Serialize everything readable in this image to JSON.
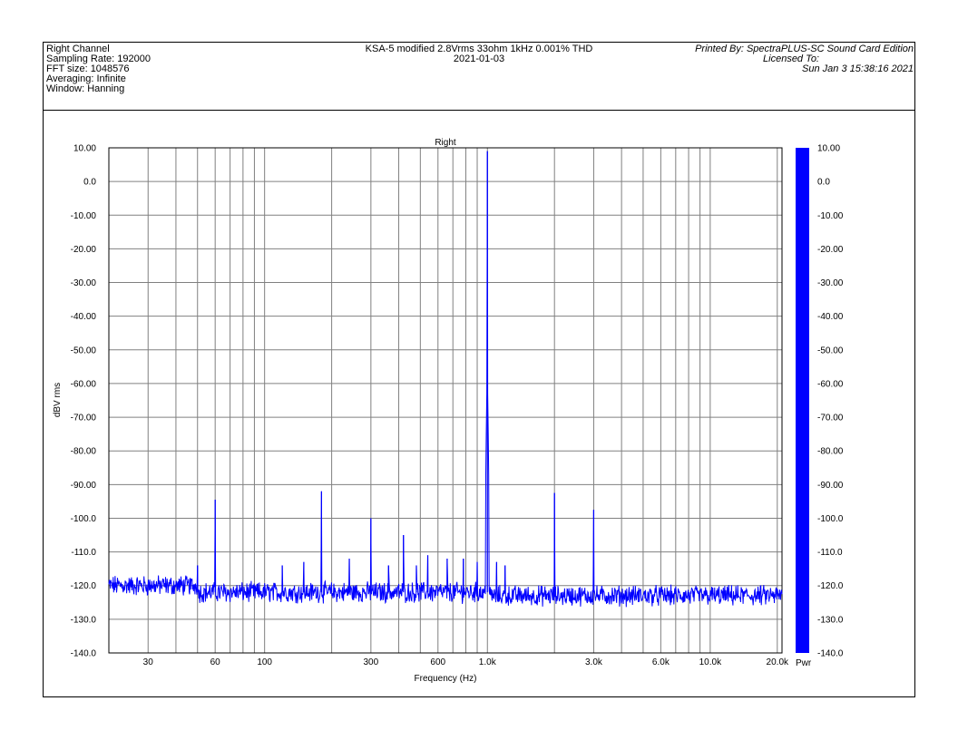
{
  "header": {
    "left": [
      "Right Channel",
      "Sampling Rate: 192000",
      "FFT size: 1048576",
      "Averaging: Infinite",
      "Window: Hanning"
    ],
    "center": [
      "KSA-5 modified 2.8Vrms 33ohm 1kHz 0.001% THD",
      "2021-01-03"
    ],
    "right": [
      "Printed By: SpectraPLUS-SC Sound Card Edition",
      "Licensed To:",
      "Sun Jan  3 15:38:16 2021"
    ]
  },
  "colors": {
    "trace": "#0000ff",
    "grid": "#808080",
    "axis": "#000000"
  },
  "chart_data": {
    "type": "line",
    "title": "Right",
    "xlabel": "Frequency (Hz)",
    "ylabel": "dBV rms",
    "x_scale": "log",
    "xlim": [
      20,
      21000
    ],
    "ylim": [
      -140,
      10
    ],
    "x_ticks": [
      {
        "v": 30,
        "label": "30"
      },
      {
        "v": 60,
        "label": "60"
      },
      {
        "v": 100,
        "label": "100"
      },
      {
        "v": 300,
        "label": "300"
      },
      {
        "v": 600,
        "label": "600"
      },
      {
        "v": 1000,
        "label": "1.0k"
      },
      {
        "v": 3000,
        "label": "3.0k"
      },
      {
        "v": 6000,
        "label": "6.0k"
      },
      {
        "v": 10000,
        "label": "10.0k"
      },
      {
        "v": 20000,
        "label": "20.0k"
      }
    ],
    "y_ticks": [
      {
        "v": 10,
        "label": "10.00"
      },
      {
        "v": 0,
        "label": "0.0"
      },
      {
        "v": -10,
        "label": "-10.00"
      },
      {
        "v": -20,
        "label": "-20.00"
      },
      {
        "v": -30,
        "label": "-30.00"
      },
      {
        "v": -40,
        "label": "-40.00"
      },
      {
        "v": -50,
        "label": "-50.00"
      },
      {
        "v": -60,
        "label": "-60.00"
      },
      {
        "v": -70,
        "label": "-70.00"
      },
      {
        "v": -80,
        "label": "-80.00"
      },
      {
        "v": -90,
        "label": "-90.00"
      },
      {
        "v": -100,
        "label": "-100.0"
      },
      {
        "v": -110,
        "label": "-110.0"
      },
      {
        "v": -120,
        "label": "-120.0"
      },
      {
        "v": -130,
        "label": "-130.0"
      },
      {
        "v": -140,
        "label": "-140.0"
      }
    ],
    "grid": true,
    "noise_floor_db": -122,
    "peaks": [
      {
        "x": 50,
        "y": -114
      },
      {
        "x": 60,
        "y": -94.5
      },
      {
        "x": 120,
        "y": -114
      },
      {
        "x": 150,
        "y": -113
      },
      {
        "x": 180,
        "y": -92
      },
      {
        "x": 240,
        "y": -112
      },
      {
        "x": 300,
        "y": -100
      },
      {
        "x": 360,
        "y": -114
      },
      {
        "x": 420,
        "y": -105
      },
      {
        "x": 480,
        "y": -114
      },
      {
        "x": 540,
        "y": -111
      },
      {
        "x": 660,
        "y": -112
      },
      {
        "x": 780,
        "y": -112
      },
      {
        "x": 900,
        "y": -113
      },
      {
        "x": 1000,
        "y": 9
      },
      {
        "x": 1100,
        "y": -113
      },
      {
        "x": 1200,
        "y": -114
      },
      {
        "x": 2000,
        "y": -92.5
      },
      {
        "x": 3000,
        "y": -97.5
      }
    ],
    "legend": {
      "label": "Pwr",
      "position": "right",
      "scale_max": 10,
      "scale_min": -140,
      "tick_labels": [
        "10.00",
        "0.0",
        "-10.00",
        "-20.00",
        "-30.00",
        "-40.00",
        "-50.00",
        "-60.00",
        "-70.00",
        "-80.00",
        "-90.00",
        "-100.0",
        "-110.0",
        "-120.0",
        "-130.0",
        "-140.0"
      ]
    }
  }
}
